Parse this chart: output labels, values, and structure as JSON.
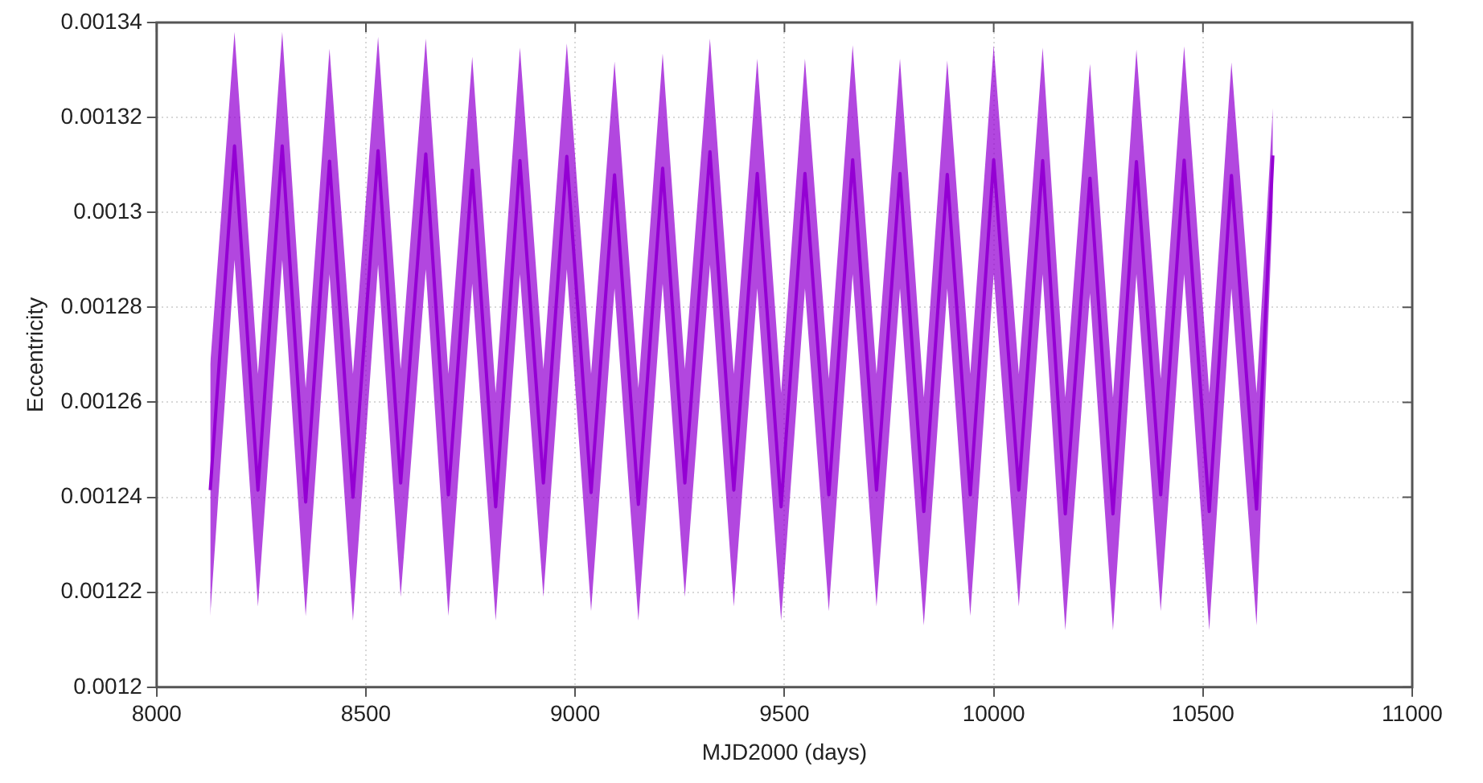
{
  "chart_data": {
    "type": "line",
    "xlabel": "MJD2000 (days)",
    "ylabel": "Eccentricity",
    "x": [
      8128,
      8186,
      8242,
      8300,
      8356,
      8413,
      8469,
      8529,
      8583,
      8643,
      8697,
      8754,
      8810,
      8868,
      8924,
      8980,
      9038,
      9094,
      9151,
      9209,
      9262,
      9322,
      9379,
      9435,
      9492,
      9549,
      9606,
      9663,
      9720,
      9776,
      9833,
      9889,
      9944,
      10000,
      10060,
      10117,
      10171,
      10230,
      10285,
      10341,
      10399,
      10455,
      10515,
      10568,
      10628,
      10667
    ],
    "series": [
      {
        "color": "#9400d3",
        "values": [
          0.0012415,
          0.001314,
          0.0012415,
          0.001314,
          0.001239,
          0.0013108,
          0.00124,
          0.001313,
          0.001243,
          0.0013123,
          0.0012405,
          0.0013089,
          0.001238,
          0.0013109,
          0.001243,
          0.0013118,
          0.001241,
          0.0013079,
          0.0012385,
          0.0013093,
          0.001243,
          0.0013128,
          0.0012415,
          0.0013082,
          0.001238,
          0.0013082,
          0.0012405,
          0.0013111,
          0.0012415,
          0.0013082,
          0.001237,
          0.001308,
          0.0012405,
          0.0013111,
          0.0012415,
          0.0013109,
          0.0012365,
          0.0013072,
          0.0012365,
          0.0013107,
          0.0012405,
          0.001311,
          0.001237,
          0.0013078,
          0.0012375,
          0.001312
        ],
        "upper": [
          0.001268,
          0.001338,
          0.001266,
          0.001338,
          0.001263,
          0.0013345,
          0.001266,
          0.001337,
          0.001267,
          0.0013366,
          0.001266,
          0.0013328,
          0.001262,
          0.0013347,
          0.001267,
          0.0013356,
          0.001266,
          0.0013318,
          0.001263,
          0.0013335,
          0.001267,
          0.0013366,
          0.001266,
          0.0013324,
          0.001262,
          0.0013324,
          0.001265,
          0.0013352,
          0.001266,
          0.0013324,
          0.001261,
          0.001332,
          0.001266,
          0.0013352,
          0.001266,
          0.0013347,
          0.001261,
          0.0013313,
          0.001261,
          0.0013343,
          0.001265,
          0.001335,
          0.001262,
          0.0013316,
          0.001262,
          0.001322
        ],
        "lower": [
          0.001215,
          0.00129,
          0.001217,
          0.00129,
          0.001215,
          0.001287,
          0.001214,
          0.001289,
          0.001219,
          0.001288,
          0.001215,
          0.001285,
          0.001214,
          0.001287,
          0.001219,
          0.001288,
          0.001216,
          0.001284,
          0.001214,
          0.001285,
          0.001219,
          0.001289,
          0.001217,
          0.001284,
          0.001214,
          0.001284,
          0.001216,
          0.001287,
          0.001217,
          0.001284,
          0.001213,
          0.001284,
          0.001215,
          0.001287,
          0.001217,
          0.001287,
          0.001212,
          0.001283,
          0.001212,
          0.001287,
          0.001216,
          0.001287,
          0.001212,
          0.001284,
          0.001213,
          0.001302
        ]
      }
    ],
    "xlim": [
      8000,
      11000
    ],
    "xticks": [
      8000,
      8500,
      9000,
      9500,
      10000,
      10500,
      11000
    ],
    "ylim": [
      0.0012,
      0.00134
    ],
    "yticks": [
      0.0012,
      0.00122,
      0.00124,
      0.00126,
      0.00128,
      0.0013,
      0.00132,
      0.00134
    ],
    "grid": true,
    "legend": false,
    "marker": "none",
    "line_style": "solid"
  }
}
